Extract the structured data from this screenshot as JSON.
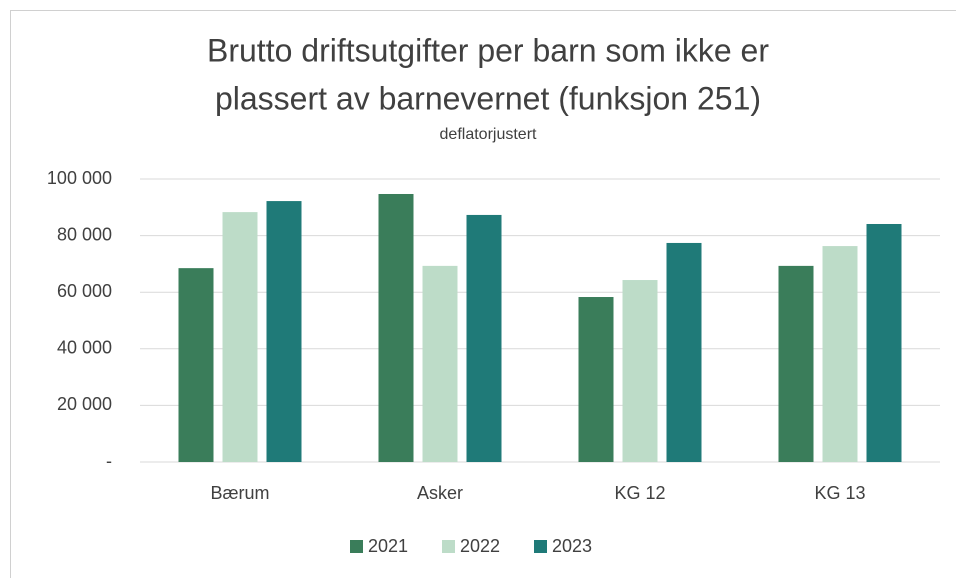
{
  "chart_data": {
    "type": "bar",
    "title": [
      "Brutto driftsutgifter per barn som ikke er",
      "plassert av barnevernet (funksjon 251)"
    ],
    "subtitle": "deflatorjustert",
    "categories": [
      "Bærum",
      "Asker",
      "KG 12",
      "KG 13"
    ],
    "series": [
      {
        "name": "2021",
        "color": "#3a7d5a",
        "values": [
          68500,
          94700,
          58300,
          69300
        ]
      },
      {
        "name": "2022",
        "color": "#bddcc8",
        "values": [
          88300,
          69300,
          64300,
          76300
        ]
      },
      {
        "name": "2023",
        "color": "#1f7a78",
        "values": [
          92200,
          87300,
          77400,
          84100
        ]
      }
    ],
    "ylim": [
      0,
      100000
    ],
    "yticks": [
      {
        "value": 0,
        "label": "-"
      },
      {
        "value": 20000,
        "label": "20 000"
      },
      {
        "value": 40000,
        "label": "40 000"
      },
      {
        "value": 60000,
        "label": "60 000"
      },
      {
        "value": 80000,
        "label": "80 000"
      },
      {
        "value": 100000,
        "label": "100 000"
      }
    ],
    "grid": true,
    "legend": "bottom"
  }
}
